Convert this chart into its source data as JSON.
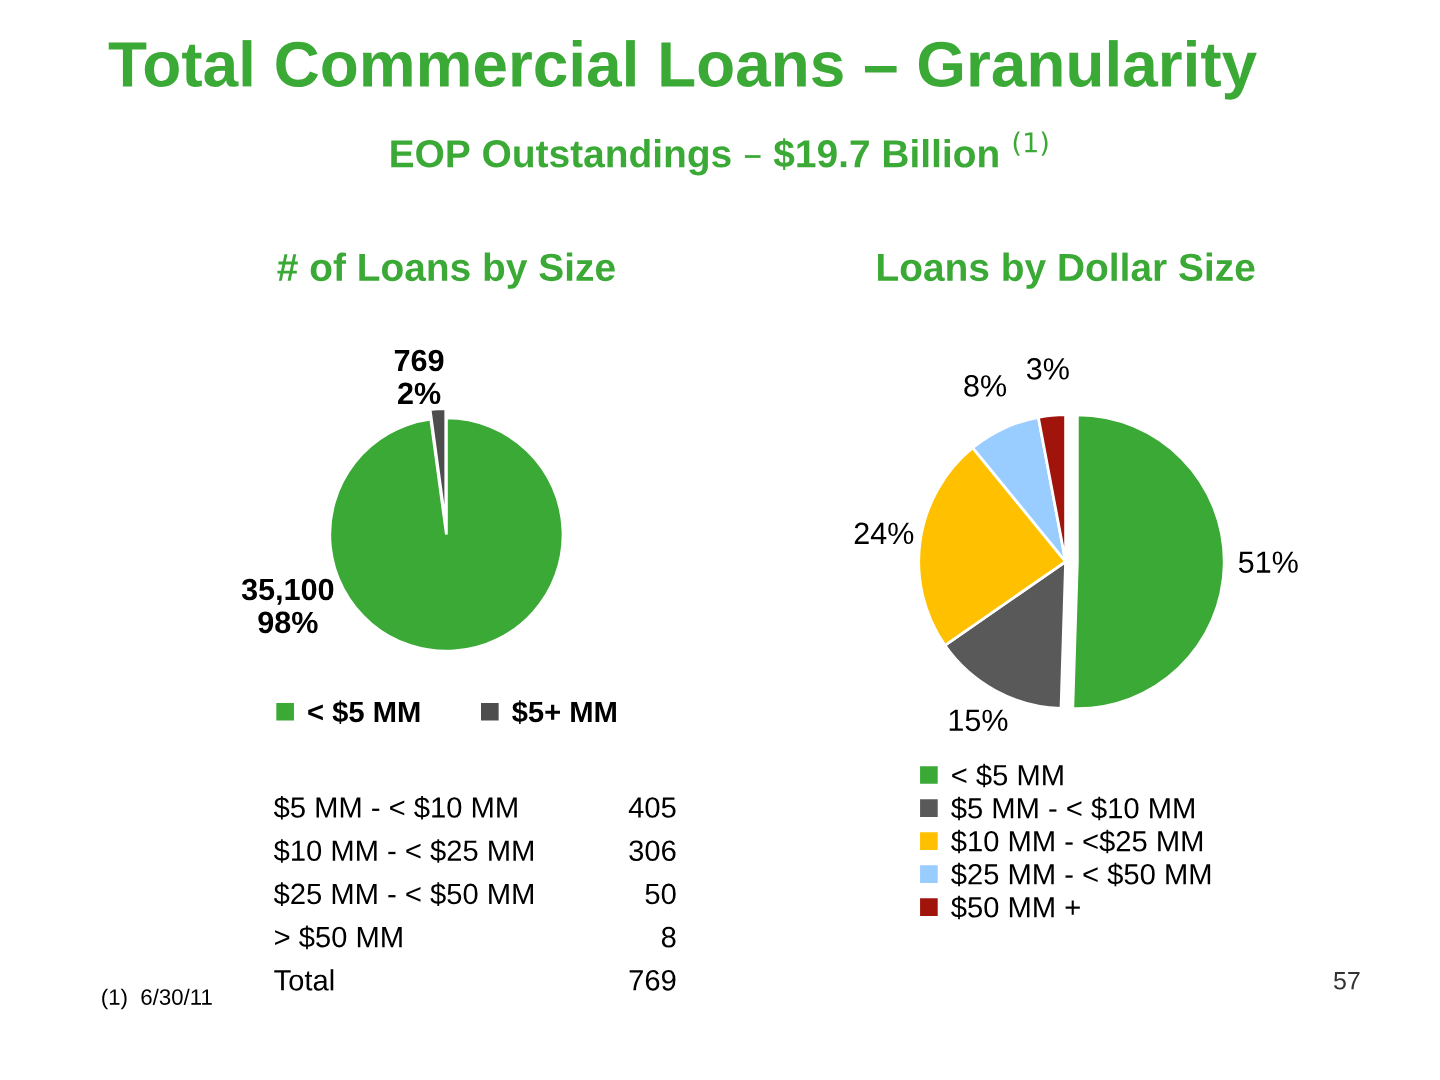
{
  "chart_data": [
    {
      "type": "other",
      "title": "Total Commercial Loans – Granularity",
      "subtitle": "EOP Outstandings – $19.7 Billion $^{(1)}$",
      "annotations": [
        "(1)  6/30/11",
        "57"
      ]
    },
    {
      "type": "pie",
      "title": "# of Loans by Size",
      "categories": [
        "< $5 MM",
        "$5+ MM"
      ],
      "values": [
        35100,
        769
      ],
      "colors": [
        "#3aa935",
        "#4d4d4d"
      ],
      "value_labels": [
        "35,100\n98%",
        "769\n2%"
      ],
      "legend": "bottom"
    },
    {
      "type": "pie",
      "title": "Loans by Dollar Size",
      "categories": [
        "< $5 MM",
        "$5 MM - < $10 MM",
        "$10 MM - <$25 MM",
        "$25 MM - < $50 MM",
        "$50 MM +"
      ],
      "values": [
        51,
        15,
        24,
        8,
        3
      ],
      "colors": [
        "#3aa935",
        "#595959",
        "#ffc000",
        "#99ccff",
        "#a0140c"
      ],
      "value_labels": [
        "51%",
        "15%",
        "24%",
        "8%",
        "3%"
      ],
      "legend": "bottom"
    },
    {
      "type": "other",
      "categories": [
        "$5 MM - < $10 MM",
        "$10 MM - < $25 MM",
        "$25 MM - < $50 MM",
        "> $50 MM"
      ],
      "values": [
        405,
        306,
        50,
        8
      ],
      "data_labels": true,
      "annotations": [
        "Total"
      ],
      "totals": [
        "769"
      ]
    }
  ]
}
